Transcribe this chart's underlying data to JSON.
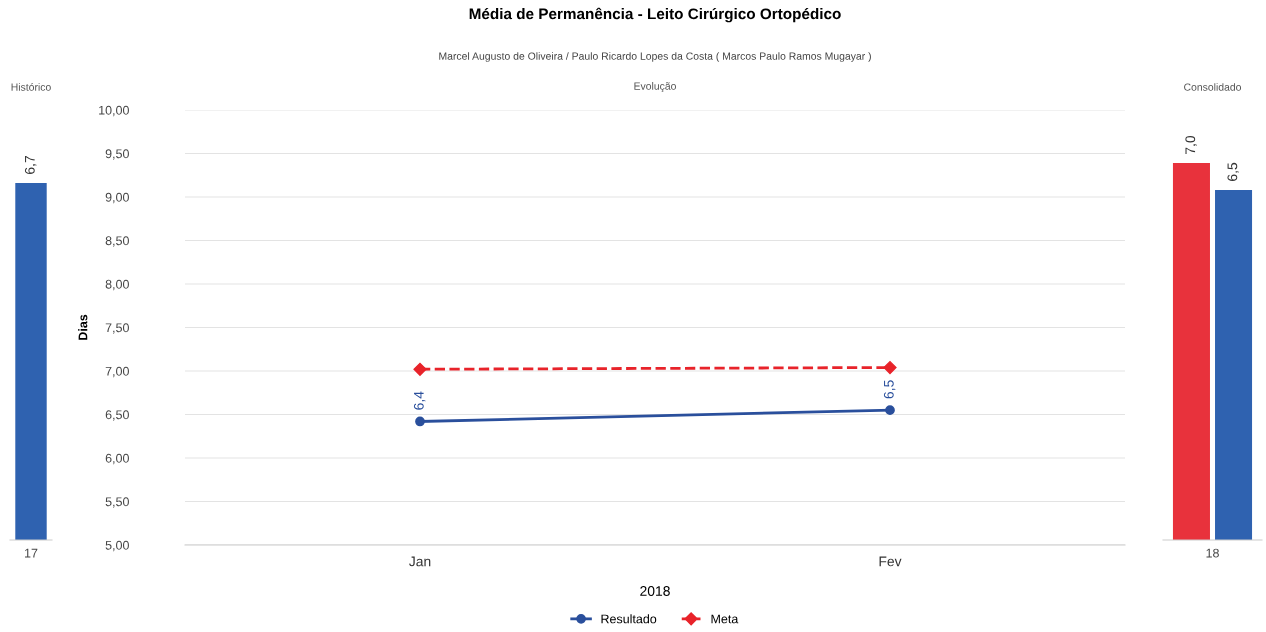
{
  "chart_data": [
    {
      "type": "bar",
      "title": "Histórico",
      "categories": [
        "17"
      ],
      "series": [
        {
          "color": "#2f62b0",
          "values": [
            6.7
          ],
          "value_labels": [
            "6,7"
          ]
        }
      ]
    },
    {
      "type": "line",
      "title": "Média de Permanência - Leito Cirúrgico Ortopédico",
      "subtitle": "Marcel Augusto de Oliveira / Paulo Ricardo Lopes da Costa ( Marcos Paulo Ramos Mugayar )",
      "annotations": [
        "Evolução"
      ],
      "categories": [
        "Jan",
        "Fev"
      ],
      "xlabel": "2018",
      "ylabel": "Dias",
      "ylim": [
        5,
        10
      ],
      "yticks": [
        {
          "value": 5,
          "label": "5,00"
        },
        {
          "value": 5.5,
          "label": "5,50"
        },
        {
          "value": 6,
          "label": "6,00"
        },
        {
          "value": 6.5,
          "label": "6,50"
        },
        {
          "value": 7,
          "label": "7,00"
        },
        {
          "value": 7.5,
          "label": "7,50"
        },
        {
          "value": 8,
          "label": "8,00"
        },
        {
          "value": 8.5,
          "label": "8,50"
        },
        {
          "value": 9,
          "label": "9,00"
        },
        {
          "value": 9.5,
          "label": "9,50"
        },
        {
          "value": 10,
          "label": "10,00"
        }
      ],
      "grid": "y",
      "legend": "bottom",
      "series": [
        {
          "name": "Resultado",
          "color": "#2a4f9c",
          "marker": "circle",
          "line_style": "solid",
          "values": [
            6.42,
            6.55
          ],
          "value_labels": [
            "6,4",
            "6,5"
          ]
        },
        {
          "name": "Meta",
          "color": "#e8232a",
          "marker": "diamond",
          "line_style": "dashed",
          "values": [
            7.02,
            7.04
          ]
        }
      ]
    },
    {
      "type": "bar",
      "title": "Consolidado",
      "categories": [
        "18"
      ],
      "series": [
        {
          "color": "#e8323c",
          "values": [
            7.0
          ],
          "value_labels": [
            "7,0"
          ]
        },
        {
          "color": "#2f62b0",
          "values": [
            6.5
          ],
          "value_labels": [
            "6,5"
          ]
        }
      ]
    }
  ]
}
